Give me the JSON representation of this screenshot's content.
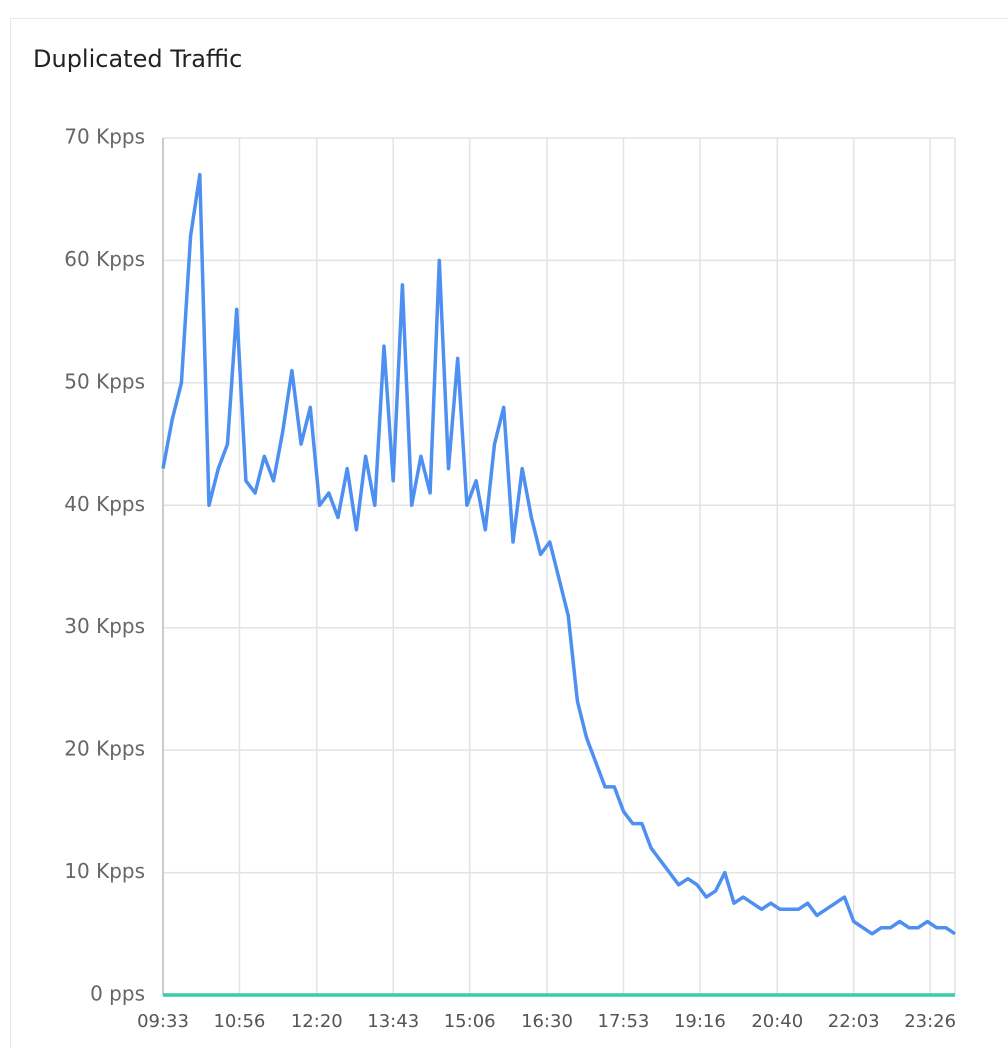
{
  "chart_data": {
    "type": "line",
    "title": "Duplicated Traffic",
    "x": [
      "09:33",
      "09:43",
      "09:53",
      "10:03",
      "10:13",
      "10:23",
      "10:33",
      "10:43",
      "10:53",
      "11:03",
      "11:13",
      "11:23",
      "11:33",
      "11:43",
      "11:53",
      "12:03",
      "12:13",
      "12:23",
      "12:33",
      "12:43",
      "12:53",
      "13:03",
      "13:13",
      "13:23",
      "13:33",
      "13:43",
      "13:53",
      "14:03",
      "14:13",
      "14:23",
      "14:33",
      "14:43",
      "14:53",
      "15:03",
      "15:13",
      "15:23",
      "15:33",
      "15:43",
      "15:53",
      "16:03",
      "16:13",
      "16:23",
      "16:33",
      "16:43",
      "16:53",
      "17:03",
      "17:13",
      "17:23",
      "17:33",
      "17:43",
      "17:53",
      "18:03",
      "18:13",
      "18:23",
      "18:33",
      "18:43",
      "18:53",
      "19:03",
      "19:13",
      "19:23",
      "19:33",
      "19:43",
      "19:53",
      "20:03",
      "20:13",
      "20:23",
      "20:33",
      "20:43",
      "20:53",
      "21:03",
      "21:13",
      "21:23",
      "21:33",
      "21:43",
      "21:53",
      "22:03",
      "22:13",
      "22:23",
      "22:33",
      "22:43",
      "22:53",
      "23:03",
      "23:13",
      "23:23",
      "23:33",
      "23:43",
      "23:53"
    ],
    "series": [
      {
        "color": "#4e8ff2",
        "values": [
          43000,
          47000,
          50000,
          62000,
          67000,
          40000,
          43000,
          45000,
          56000,
          42000,
          41000,
          44000,
          42000,
          46000,
          51000,
          45000,
          48000,
          40000,
          41000,
          39000,
          43000,
          38000,
          44000,
          40000,
          53000,
          42000,
          58000,
          40000,
          44000,
          41000,
          60000,
          43000,
          52000,
          40000,
          42000,
          38000,
          45000,
          48000,
          37000,
          43000,
          39000,
          36000,
          37000,
          34000,
          31000,
          24000,
          21000,
          19000,
          17000,
          17000,
          15000,
          14000,
          14000,
          12000,
          11000,
          10000,
          9000,
          9500,
          9000,
          8000,
          8500,
          10000,
          7500,
          8000,
          7500,
          7000,
          7500,
          7000,
          7000,
          7000,
          7500,
          6500,
          7000,
          7500,
          8000,
          6000,
          5500,
          5000,
          5500,
          5500,
          6000,
          5500,
          5500,
          6000,
          5500,
          5500,
          5000
        ]
      },
      {
        "color": "#36cfa8",
        "values": [
          0,
          0,
          0,
          0,
          0,
          0,
          0,
          0,
          0,
          0,
          0,
          0,
          0,
          0,
          0,
          0,
          0,
          0,
          0,
          0,
          0,
          0,
          0,
          0,
          0,
          0,
          0,
          0,
          0,
          0,
          0,
          0,
          0,
          0,
          0,
          0,
          0,
          0,
          0,
          0,
          0,
          0,
          0,
          0,
          0,
          0,
          0,
          0,
          0,
          0,
          0,
          0,
          0,
          0,
          0,
          0,
          0,
          0,
          0,
          0,
          0,
          0,
          0,
          0,
          0,
          0,
          0,
          0,
          0,
          0,
          0,
          0,
          0,
          0,
          0,
          0,
          0,
          0,
          0,
          0,
          0,
          0,
          0,
          0,
          0,
          0,
          0
        ]
      }
    ],
    "xlim": [
      "09:33",
      "23:53"
    ],
    "xticks": [
      "09:33",
      "10:56",
      "12:20",
      "13:43",
      "15:06",
      "16:30",
      "17:53",
      "19:16",
      "20:40",
      "22:03",
      "23:26"
    ],
    "ylim": [
      0,
      70000
    ],
    "yticks": [
      {
        "value": 0,
        "label": "0 pps"
      },
      {
        "value": 10000,
        "label": "10 Kpps"
      },
      {
        "value": 20000,
        "label": "20 Kpps"
      },
      {
        "value": 30000,
        "label": "30 Kpps"
      },
      {
        "value": 40000,
        "label": "40 Kpps"
      },
      {
        "value": 50000,
        "label": "50 Kpps"
      },
      {
        "value": 60000,
        "label": "60 Kpps"
      },
      {
        "value": 70000,
        "label": "70 Kpps"
      }
    ],
    "grid": true
  }
}
